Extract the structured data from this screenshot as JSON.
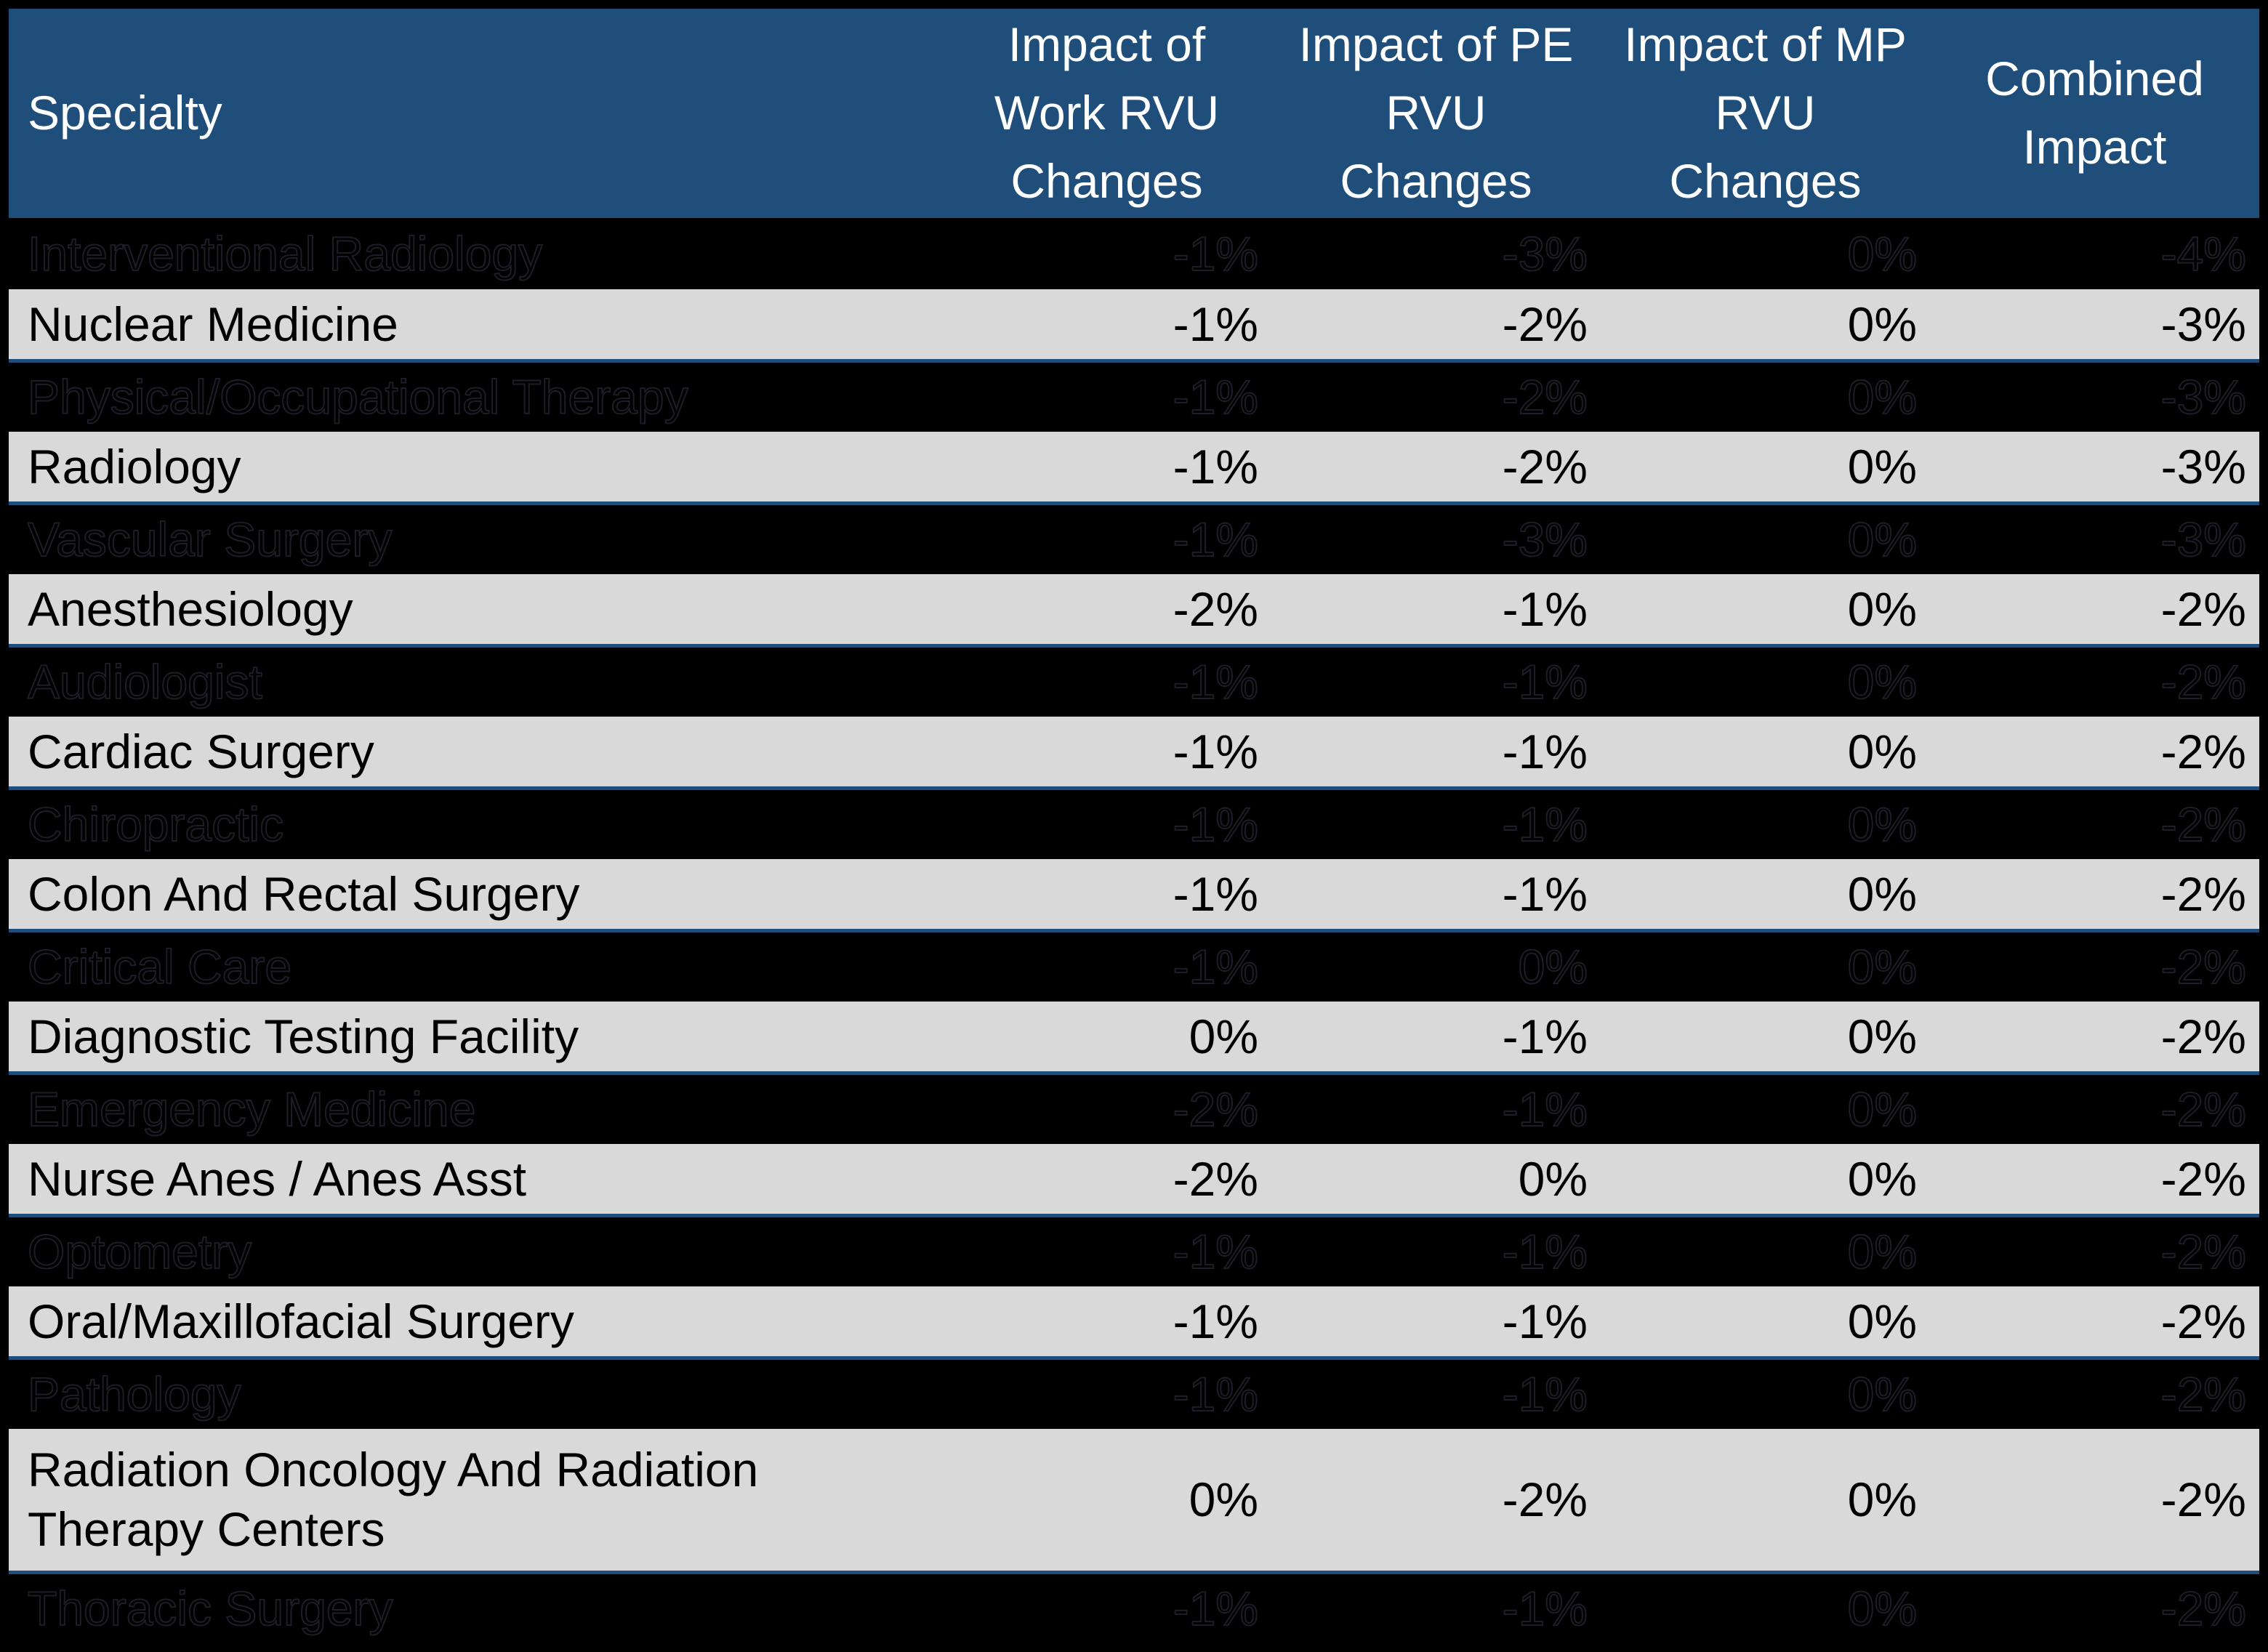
{
  "colors": {
    "header_bg": "#1F4E7A",
    "header_text": "#FFFFFF",
    "light_row_bg": "#D9D9D9",
    "dark_row_bg": "#000000",
    "body_text": "#000000",
    "row_divider": "#1F4E7A"
  },
  "table": {
    "columns": {
      "specialty": "Specialty",
      "work": "Impact of Work RVU Changes",
      "pe": "Impact of PE RVU Changes",
      "mp": "Impact of MP RVU Changes",
      "combined": "Combined Impact"
    },
    "rows": [
      {
        "specialty": "Interventional Radiology",
        "work": "-1%",
        "pe": "-3%",
        "mp": "0%",
        "combined": "-4%"
      },
      {
        "specialty": "Nuclear Medicine",
        "work": "-1%",
        "pe": "-2%",
        "mp": "0%",
        "combined": "-3%"
      },
      {
        "specialty": "Physical/Occupational Therapy",
        "work": "-1%",
        "pe": "-2%",
        "mp": "0%",
        "combined": "-3%"
      },
      {
        "specialty": "Radiology",
        "work": "-1%",
        "pe": "-2%",
        "mp": "0%",
        "combined": "-3%"
      },
      {
        "specialty": "Vascular Surgery",
        "work": "-1%",
        "pe": "-3%",
        "mp": "0%",
        "combined": "-3%"
      },
      {
        "specialty": "Anesthesiology",
        "work": "-2%",
        "pe": "-1%",
        "mp": "0%",
        "combined": "-2%"
      },
      {
        "specialty": "Audiologist",
        "work": "-1%",
        "pe": "-1%",
        "mp": "0%",
        "combined": "-2%"
      },
      {
        "specialty": "Cardiac Surgery",
        "work": "-1%",
        "pe": "-1%",
        "mp": "0%",
        "combined": "-2%"
      },
      {
        "specialty": "Chiropractic",
        "work": "-1%",
        "pe": "-1%",
        "mp": "0%",
        "combined": "-2%"
      },
      {
        "specialty": "Colon And Rectal Surgery",
        "work": "-1%",
        "pe": "-1%",
        "mp": "0%",
        "combined": "-2%"
      },
      {
        "specialty": "Critical Care",
        "work": "-1%",
        "pe": "0%",
        "mp": "0%",
        "combined": "-2%"
      },
      {
        "specialty": "Diagnostic Testing Facility",
        "work": "0%",
        "pe": "-1%",
        "mp": "0%",
        "combined": "-2%"
      },
      {
        "specialty": "Emergency Medicine",
        "work": "-2%",
        "pe": "-1%",
        "mp": "0%",
        "combined": "-2%"
      },
      {
        "specialty": "Nurse Anes / Anes Asst",
        "work": "-2%",
        "pe": "0%",
        "mp": "0%",
        "combined": "-2%"
      },
      {
        "specialty": "Optometry",
        "work": "-1%",
        "pe": "-1%",
        "mp": "0%",
        "combined": "-2%"
      },
      {
        "specialty": "Oral/Maxillofacial Surgery",
        "work": "-1%",
        "pe": "-1%",
        "mp": "0%",
        "combined": "-2%"
      },
      {
        "specialty": "Pathology",
        "work": "-1%",
        "pe": "-1%",
        "mp": "0%",
        "combined": "-2%"
      },
      {
        "specialty": "Radiation Oncology And Radiation Therapy Centers",
        "work": "0%",
        "pe": "-2%",
        "mp": "0%",
        "combined": "-2%"
      },
      {
        "specialty": "Thoracic Surgery",
        "work": "-1%",
        "pe": "-1%",
        "mp": "0%",
        "combined": "-2%"
      }
    ]
  }
}
